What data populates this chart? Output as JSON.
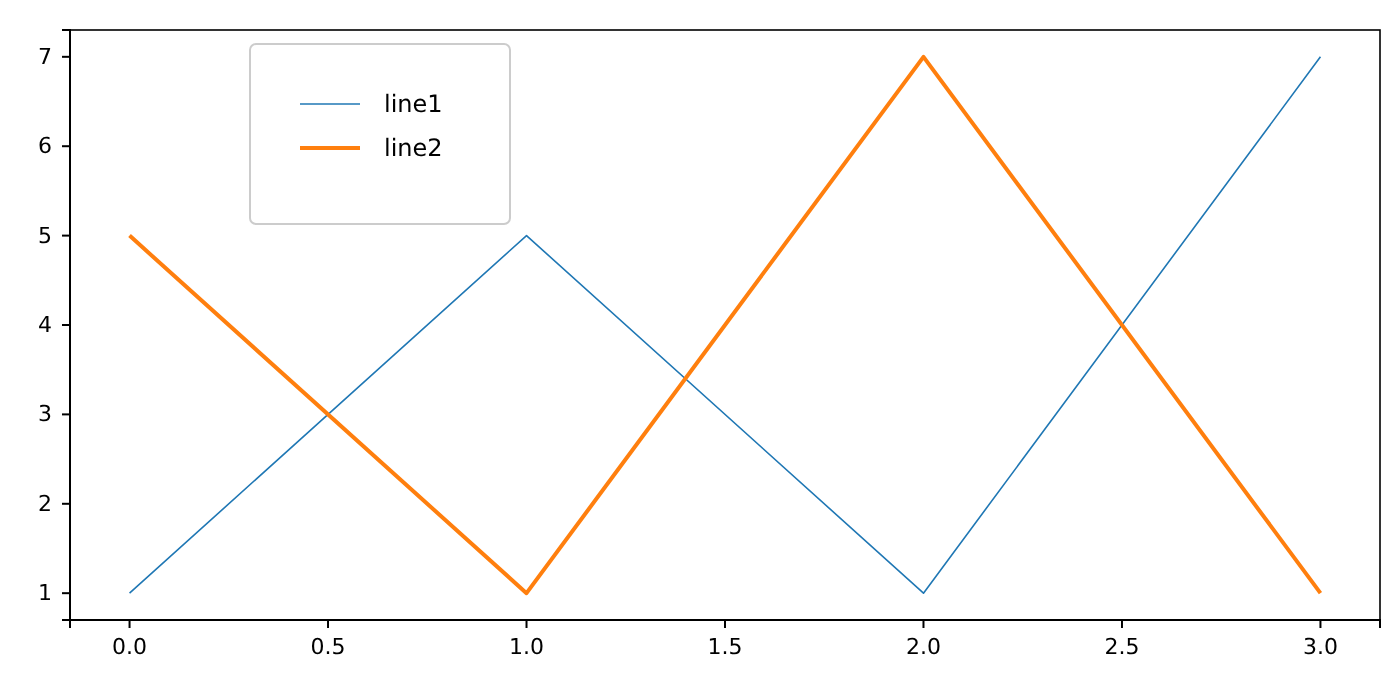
{
  "chart_data": {
    "type": "line",
    "x": [
      0,
      1,
      2,
      3
    ],
    "series": [
      {
        "name": "line1",
        "color": "#1f77b4",
        "values": [
          1,
          5,
          1,
          7
        ]
      },
      {
        "name": "line2",
        "color": "#ff7f0e",
        "values": [
          5,
          1,
          7,
          1
        ]
      }
    ],
    "xlim": [
      -0.15,
      3.15
    ],
    "xticks": [
      {
        "value": 0,
        "label": "0.0"
      },
      {
        "value": 0.5,
        "label": "0.5"
      },
      {
        "value": 1,
        "label": "1.0"
      },
      {
        "value": 1.5,
        "label": "1.5"
      },
      {
        "value": 2,
        "label": "2.0"
      },
      {
        "value": 2.5,
        "label": "2.5"
      },
      {
        "value": 3,
        "label": "3.0"
      }
    ],
    "ylim": [
      0.7,
      7.3
    ],
    "yticks": [
      1,
      2,
      3,
      4,
      5,
      6,
      7
    ],
    "legend": "top left",
    "grid": false,
    "marker": "none",
    "line_style": "solid"
  }
}
